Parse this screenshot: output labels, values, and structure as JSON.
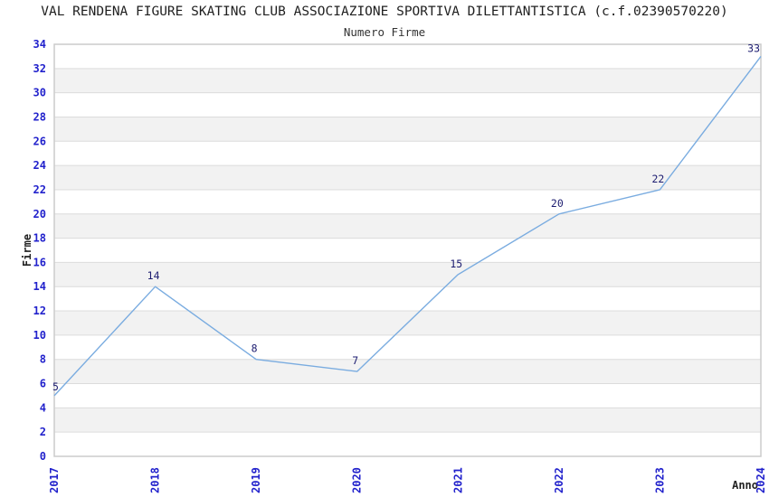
{
  "header": {
    "title": "VAL RENDENA FIGURE SKATING CLUB ASSOCIAZIONE SPORTIVA DILETTANTISTICA (c.f.02390570220)"
  },
  "chart_data": {
    "type": "line",
    "title": "Numero Firme",
    "x": [
      2017,
      2018,
      2019,
      2020,
      2021,
      2022,
      2023,
      2024
    ],
    "series": [
      {
        "name": "Numero Firme",
        "values": [
          5,
          14,
          8,
          7,
          15,
          20,
          22,
          33
        ]
      }
    ],
    "xlabel": "Anno",
    "ylabel": "Firme",
    "ylim": [
      0,
      34
    ],
    "ytick_step": 2,
    "grid": true,
    "legend_position": "none",
    "point_labels": [
      "5",
      "14",
      "8",
      "7",
      "15",
      "20",
      "22",
      "33"
    ],
    "colors": {
      "line": "#7aace0",
      "tick_label": "#2222cc",
      "point_label": "#1c1c70",
      "band": "#f2f2f2",
      "grid": "#dcdcdc",
      "border": "#cccccc",
      "text": "#222222"
    }
  }
}
